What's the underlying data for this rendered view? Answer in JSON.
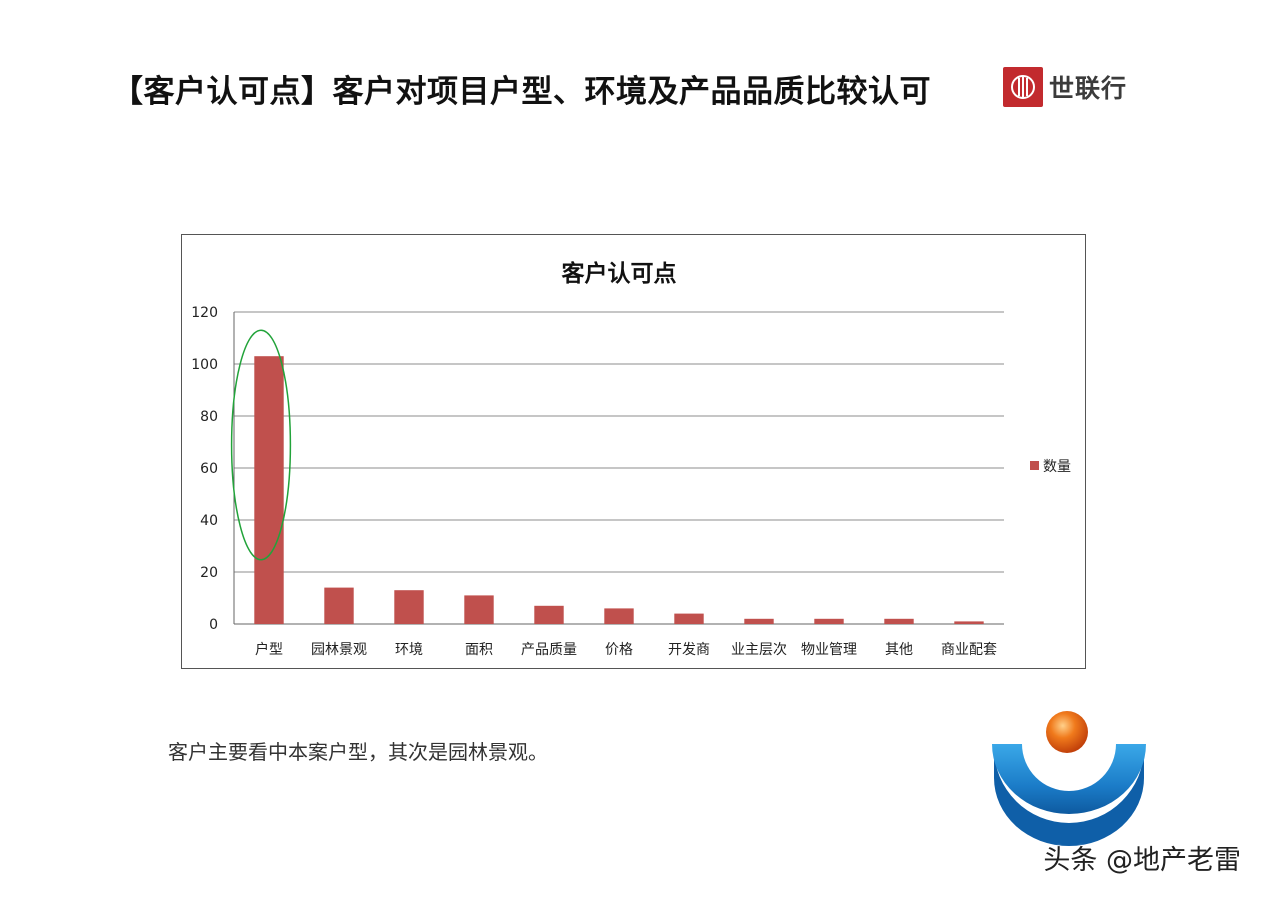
{
  "slide": {
    "title": "【客户认可点】客户对项目户型、环境及产品品质比较认可",
    "brand_name": "世联行",
    "conclusion": "客户主要看中本案户型，其次是园林景观。",
    "watermark": "头条 @地产老雷"
  },
  "colors": {
    "bar": "#c0504d",
    "gridline": "#8c8c8c",
    "highlight_ellipse": "#22a33a",
    "brand_red": "#c22a2e"
  },
  "chart_data": {
    "type": "bar",
    "title": "客户认可点",
    "categories": [
      "户型",
      "园林景观",
      "环境",
      "面积",
      "产品质量",
      "价格",
      "开发商",
      "业主层次",
      "物业管理",
      "其他",
      "商业配套"
    ],
    "series": [
      {
        "name": "数量",
        "values": [
          103,
          14,
          13,
          11,
          7,
          6,
          4,
          2,
          2,
          2,
          1
        ]
      }
    ],
    "yticks": [
      0,
      20,
      40,
      60,
      80,
      100,
      120
    ],
    "ylim": [
      0,
      120
    ],
    "grid": true,
    "legend": "right",
    "highlighted_category": "户型"
  }
}
